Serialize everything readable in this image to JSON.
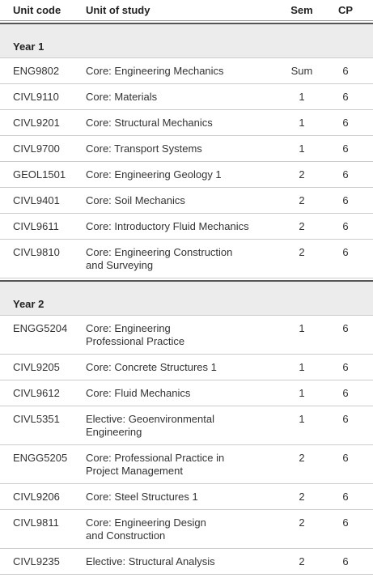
{
  "header": {
    "code": "Unit code",
    "unit": "Unit of study",
    "sem": "Sem",
    "cp": "CP"
  },
  "sections": [
    {
      "title": "Year 1",
      "rows": [
        {
          "code": "ENG9802",
          "unit": [
            "Core: Engineering Mechanics"
          ],
          "sem": "Sum",
          "cp": 6
        },
        {
          "code": "CIVL9110",
          "unit": [
            "Core: Materials"
          ],
          "sem": 1,
          "cp": 6
        },
        {
          "code": "CIVL9201",
          "unit": [
            "Core: Structural Mechanics"
          ],
          "sem": 1,
          "cp": 6
        },
        {
          "code": "CIVL9700",
          "unit": [
            "Core: Transport Systems"
          ],
          "sem": 1,
          "cp": 6
        },
        {
          "code": "GEOL1501",
          "unit": [
            "Core: Engineering Geology 1"
          ],
          "sem": 2,
          "cp": 6
        },
        {
          "code": "CIVL9401",
          "unit": [
            "Core: Soil Mechanics"
          ],
          "sem": 2,
          "cp": 6
        },
        {
          "code": "CIVL9611",
          "unit": [
            "Core: Introductory Fluid Mechanics"
          ],
          "sem": 2,
          "cp": 6
        },
        {
          "code": "CIVL9810",
          "unit": [
            "Core: Engineering Construction",
            "and Surveying"
          ],
          "sem": 2,
          "cp": 6
        }
      ]
    },
    {
      "title": "Year 2",
      "rows": [
        {
          "code": "ENGG5204",
          "unit": [
            "Core: Engineering",
            "Professional Practice"
          ],
          "sem": 1,
          "cp": 6
        },
        {
          "code": "CIVL9205",
          "unit": [
            "Core: Concrete Structures 1"
          ],
          "sem": 1,
          "cp": 6
        },
        {
          "code": "CIVL9612",
          "unit": [
            "Core: Fluid Mechanics"
          ],
          "sem": 1,
          "cp": 6
        },
        {
          "code": "CIVL5351",
          "unit": [
            "Elective: Geoenvironmental",
            "Engineering"
          ],
          "sem": 1,
          "cp": 6
        },
        {
          "code": "ENGG5205",
          "unit": [
            "Core: Professional Practice in",
            "Project Management"
          ],
          "sem": 2,
          "cp": 6
        },
        {
          "code": "CIVL9206",
          "unit": [
            "Core: Steel Structures 1"
          ],
          "sem": 2,
          "cp": 6
        },
        {
          "code": "CIVL9811",
          "unit": [
            "Core: Engineering Design",
            "and Construction"
          ],
          "sem": 2,
          "cp": 6
        },
        {
          "code": "CIVL9235",
          "unit": [
            "Elective: Structural Analysis"
          ],
          "sem": 2,
          "cp": 6
        }
      ]
    }
  ]
}
